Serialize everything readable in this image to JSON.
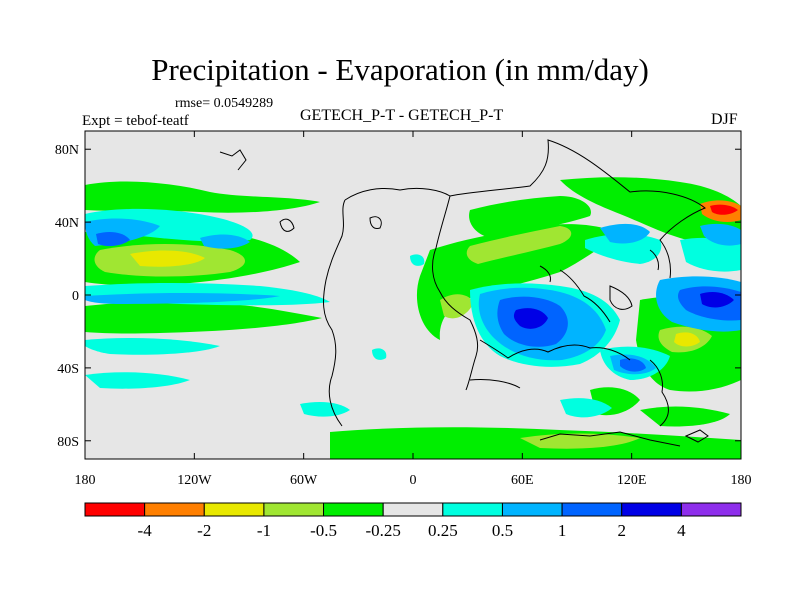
{
  "title": "Precipitation - Evaporation (in mm/day)",
  "rmse_label": "rmse= 0.0549289",
  "left_label": "Expt = tebof-teatf",
  "center_label": "GETECH_P-T - GETECH_P-T",
  "right_label": "DJF",
  "axes": {
    "x_ticks": [
      {
        "value": -180,
        "label": "180"
      },
      {
        "value": -120,
        "label": "120W"
      },
      {
        "value": -60,
        "label": "60W"
      },
      {
        "value": 0,
        "label": "0"
      },
      {
        "value": 60,
        "label": "60E"
      },
      {
        "value": 120,
        "label": "120E"
      },
      {
        "value": 180,
        "label": "180"
      }
    ],
    "y_ticks": [
      {
        "value": 80,
        "label": "80N"
      },
      {
        "value": 40,
        "label": "40N"
      },
      {
        "value": 0,
        "label": "0"
      },
      {
        "value": -40,
        "label": "40S"
      },
      {
        "value": -80,
        "label": "80S"
      }
    ],
    "lon_range": [
      -180,
      180
    ],
    "lat_range": [
      -90,
      90
    ]
  },
  "colorbar": {
    "colors": [
      "#ff0000",
      "#ff7f00",
      "#e8e800",
      "#a0e632",
      "#00ee00",
      "#e6e6e6",
      "#00ffe0",
      "#00b4ff",
      "#0064ff",
      "#0000e6",
      "#8e2eeb"
    ],
    "labels": [
      "-4",
      "-2",
      "-1",
      "-0.5",
      "-0.25",
      "0.25",
      "0.5",
      "1",
      "2",
      "4"
    ]
  },
  "background_color": "#e6e6e6"
}
